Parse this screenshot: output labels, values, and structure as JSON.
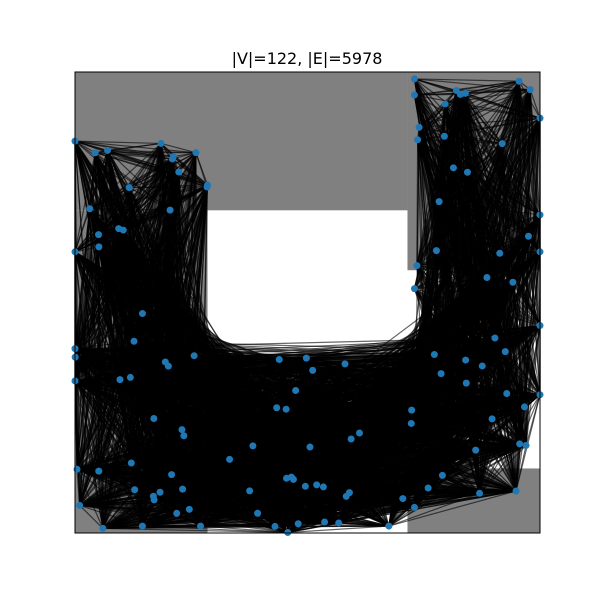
{
  "title": "|V|=122, |E|=5978",
  "colors": {
    "background": "#ffffff",
    "obstacle": "#808080",
    "edge": "#000000",
    "node": "#1f77b4",
    "frame": "#000000"
  },
  "chart_data": {
    "type": "graph",
    "title": "|V|=122, |E|=5978",
    "vertex_count": 122,
    "edge_count": 5978,
    "xlim": [
      0,
      1
    ],
    "ylim": [
      0,
      1
    ],
    "grid": false,
    "obstacles": [
      {
        "x0": 0.0,
        "x1": 0.715,
        "y0": 0.7,
        "y1": 1.0
      },
      {
        "x0": 0.715,
        "x1": 1.0,
        "y0": 0.57,
        "y1": 1.0
      },
      {
        "x0": 0.0,
        "x1": 0.285,
        "y0": 0.0,
        "y1": 0.7
      },
      {
        "x0": 0.715,
        "x1": 1.0,
        "y0": 0.0,
        "y1": 0.14
      }
    ],
    "free_regions": [
      {
        "x0": 0.0,
        "x1": 0.285,
        "y0": 0.0,
        "y1": 0.85
      },
      {
        "x0": 0.0,
        "x1": 1.0,
        "y0": 0.0,
        "y1": 0.42
      },
      {
        "x0": 0.735,
        "x1": 1.0,
        "y0": 0.14,
        "y1": 1.0
      }
    ],
    "hull_vertices": [
      [
        0.0,
        0.85
      ],
      [
        0.07,
        0.83
      ],
      [
        0.185,
        0.845
      ],
      [
        0.26,
        0.825
      ],
      [
        0.285,
        0.755
      ],
      [
        0.73,
        0.985
      ],
      [
        0.82,
        0.96
      ],
      [
        0.955,
        0.98
      ],
      [
        1.0,
        0.9
      ],
      [
        1.0,
        0.69
      ],
      [
        1.0,
        0.61
      ],
      [
        0.73,
        0.53
      ],
      [
        0.74,
        0.88
      ],
      [
        0.73,
        0.95
      ],
      [
        0.0,
        0.61
      ],
      [
        0.0,
        0.4
      ],
      [
        0.0,
        0.33
      ],
      [
        0.01,
        0.06
      ],
      [
        0.06,
        0.01
      ],
      [
        0.145,
        0.015
      ],
      [
        0.27,
        0.015
      ],
      [
        0.48,
        0.02
      ],
      [
        0.675,
        0.015
      ],
      [
        0.97,
        0.19
      ],
      [
        1.0,
        0.3
      ],
      [
        1.0,
        0.45
      ]
    ]
  }
}
